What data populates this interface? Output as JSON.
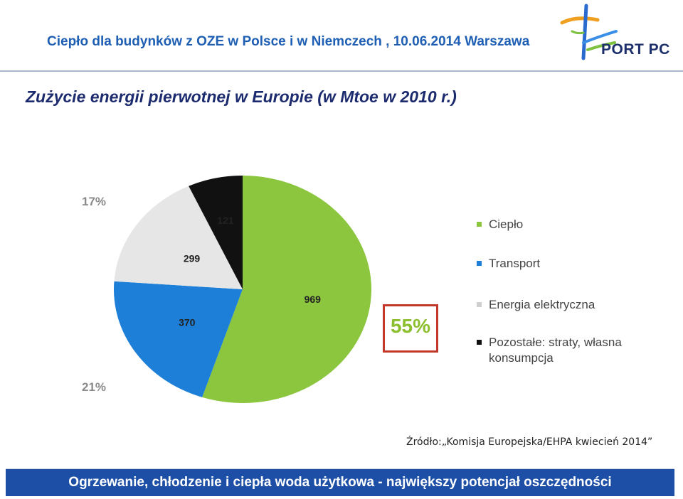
{
  "header": {
    "title": "Ciepło dla budynków z OZE w Polsce i w Niemczech , 10.06.2014 Warszawa"
  },
  "logo": {
    "text": "PORT PC",
    "icon": "port-pc-logo-icon"
  },
  "slide": {
    "title": "Zużycie energii pierwotnej w Europie (w Mtoe w 2010 r.)"
  },
  "chart_data": {
    "type": "pie",
    "title": "",
    "slices": [
      {
        "name": "Ciepło",
        "value": 969,
        "color": "#8cc63f"
      },
      {
        "name": "Transport",
        "value": 370,
        "color": "#1e7fd8"
      },
      {
        "name": "Energia elektryczna",
        "value": 299,
        "color": "#e6e6e6"
      },
      {
        "name": "Pozostałe: straty, własna konsumpcja",
        "value": 121,
        "color": "#111111"
      }
    ],
    "annotations": [
      {
        "text": "55%",
        "target": "Ciepło"
      },
      {
        "text": "21%",
        "target": "Transport"
      },
      {
        "text": "17%",
        "target": "Energia elektryczna"
      }
    ],
    "legend_placement": "right"
  },
  "source": {
    "text": "Źródło:„Komisja Europejska/EHPA kwiecień 2014”"
  },
  "footer": {
    "text": "Ogrzewanie, chłodzenie i ciepła woda użytkowa - największy potencjał oszczędności"
  }
}
